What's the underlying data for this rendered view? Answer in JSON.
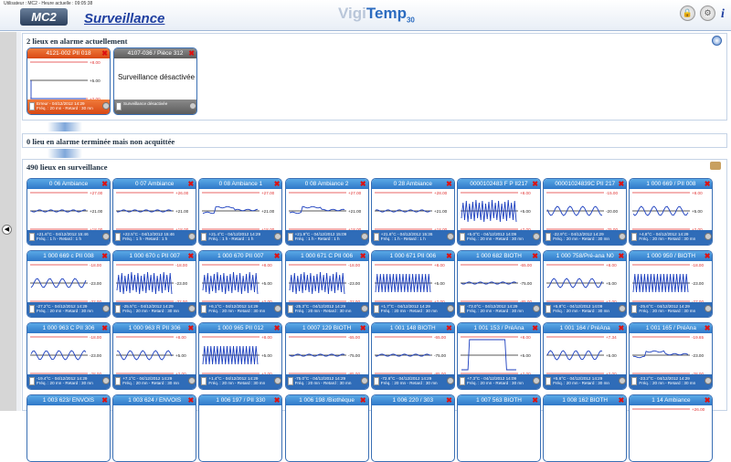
{
  "header": {
    "user_line": "Utilisateur : MC2 - Heure actuelle : 09:05:38",
    "logo": "MC2",
    "title": "Surveillance",
    "brand_a": "Vigi",
    "brand_b": "Temp",
    "brand_sub": "30",
    "info": "i",
    "icons": [
      "lock-icon",
      "settings-icon",
      "info-icon"
    ]
  },
  "sections": {
    "alarm_title": "2 lieux en alarme actuellement",
    "ack_title": "0 lieu en alarme terminée mais non acquittée",
    "watch_title": "490 lieux en surveillance"
  },
  "alarm_cards": [
    {
      "title": "4121-002 PII 018",
      "state": "red",
      "top": "+8.00",
      "mid": "+5.00",
      "bot": "+2.00",
      "f1": "Erreur - 04/12/2012 14:29",
      "f2": "Fréq. : 20 mn - Retard : 30 mn"
    },
    {
      "title": "4107-036 / Pièce 312",
      "state": "grey",
      "message": "Surveillance désactivée",
      "f1": "Surveillance désactivée",
      "f2": ""
    }
  ],
  "cards": [
    {
      "title": "0 06 Ambiance",
      "top": "+27.00",
      "mid": "+21.00",
      "bot": "+18.00",
      "f1": "+21.6°C - 04/12/2012 15:46",
      "f2": "Fréq. : 1 h - Retard : 1 h",
      "wave": "flat"
    },
    {
      "title": "0 07 Ambiance",
      "top": "+26.00",
      "mid": "+21.00",
      "bot": "+18.00",
      "f1": "+22.5°C - 04/12/2012 15:46",
      "f2": "Fréq. : 1 h - Retard : 1 h",
      "wave": "flat"
    },
    {
      "title": "0 08 Ambiance 1",
      "top": "+27.00",
      "mid": "+21.00",
      "bot": "+18.00",
      "f1": "+21.4°C - 04/12/2012 14:29",
      "f2": "Fréq. : 1 h - Retard : 1 h",
      "wave": "step"
    },
    {
      "title": "0 08 Ambiance 2",
      "top": "+27.00",
      "mid": "+21.00",
      "bot": "+18.00",
      "f1": "+21.9°C - 04/12/2012 15:09",
      "f2": "Fréq. : 1 h - Retard : 1 h",
      "wave": "step"
    },
    {
      "title": "0 28 Ambiance",
      "top": "+28.00",
      "mid": "+21.00",
      "bot": "+18.00",
      "f1": "+21.6°C - 04/12/2012 15:36",
      "f2": "Fréq. : 1 h - Retard : 1 h",
      "wave": "flat"
    },
    {
      "title": "0000102483 F P II217",
      "top": "+8.00",
      "mid": "+5.00",
      "bot": "+2.00",
      "f1": "+5.0°C - 04/12/2012 14:09",
      "f2": "Fréq. : 20 mn - Retard : 30 mn",
      "wave": "zig"
    },
    {
      "title": "00001024839C PII 217",
      "top": "-15.00",
      "mid": "-20.00",
      "bot": "-25.00",
      "f1": "-22.9°C - 04/12/2012 14:29",
      "f2": "Fréq. : 20 mn - Retard : 30 mn",
      "wave": "wave"
    },
    {
      "title": "1 000 669 / PII 008",
      "top": "+8.00",
      "mid": "+5.00",
      "bot": "+2.00",
      "f1": "+4.8°C - 04/12/2012 14:29",
      "f2": "Fréq. : 20 mn - Retard : 30 mn",
      "wave": "wave"
    },
    {
      "title": "1 000 669 c PII 008",
      "top": "-18.00",
      "mid": "-23.00",
      "bot": "-32.00",
      "f1": "-27.2°C - 04/12/2012 14:29",
      "f2": "Fréq. : 20 mn - Retard : 30 mn",
      "wave": "wave"
    },
    {
      "title": "1 000 670 c PII 007",
      "top": "-18.00",
      "mid": "-23.00",
      "bot": "-32.00",
      "f1": "-25.5°C - 04/12/2012 14:29",
      "f2": "Fréq. : 20 mn - Retard : 30 mn",
      "wave": "zig"
    },
    {
      "title": "1 000 670 PII 007",
      "top": "+8.00",
      "mid": "+5.00",
      "bot": "+2.00",
      "f1": "+6.1°C - 04/12/2012 14:29",
      "f2": "Fréq. : 20 mn - Retard : 30 mn",
      "wave": "zig"
    },
    {
      "title": "1 000 671 C PII 006",
      "top": "-18.00",
      "mid": "-23.00",
      "bot": "-32.00",
      "f1": "-25.3°C - 04/12/2012 14:29",
      "f2": "Fréq. : 20 mn - Retard : 30 mn",
      "wave": "zig"
    },
    {
      "title": "1 000 671 PII 006",
      "top": "+8.00",
      "mid": "+5.00",
      "bot": "+2.00",
      "f1": "+1.7°C - 04/12/2012 14:29",
      "f2": "Fréq. : 20 mn - Retard : 30 mn",
      "wave": "dense"
    },
    {
      "title": "1 000 682 BIOTH",
      "top": "-65.00",
      "mid": "-75.00",
      "bot": "-85.00",
      "f1": "-73.0°C - 04/12/2012 14:29",
      "f2": "Fréq. : 20 mn - Retard : 30 mn",
      "wave": "flat"
    },
    {
      "title": "1 000 758/Pré-ana N0",
      "top": "+8.00",
      "mid": "+5.00",
      "bot": "+2.00",
      "f1": "+5.8°C - 04/12/2012 14:09",
      "f2": "Fréq. : 20 mn - Retard : 30 mn",
      "wave": "wave"
    },
    {
      "title": "1 000 950 / BIOTH",
      "top": "-18.00",
      "mid": "-23.00",
      "bot": "-27.00",
      "f1": "-25.6°C - 04/12/2012 14:29",
      "f2": "Fréq. : 20 mn - Retard : 30 mn",
      "wave": "dense"
    },
    {
      "title": "1 000 963 C PII 306",
      "top": "-18.00",
      "mid": "-23.00",
      "bot": "-28.00",
      "f1": "-19.4°C - 04/12/2012 14:29",
      "f2": "Fréq. : 20 mn - Retard : 30 mn",
      "wave": "wave"
    },
    {
      "title": "1 000 963 R PII 306",
      "top": "+8.00",
      "mid": "+5.00",
      "bot": "+2.00",
      "f1": "+7.1°C - 04/12/2012 14:29",
      "f2": "Fréq. : 20 mn - Retard : 30 mn",
      "wave": "wave"
    },
    {
      "title": "1 000 965 PII 012",
      "top": "+8.00",
      "mid": "+5.00",
      "bot": "+2.00",
      "f1": "+1.4°C - 04/12/2012 14:29",
      "f2": "Fréq. : 20 mn - Retard : 30 mn",
      "wave": "dense"
    },
    {
      "title": "1 0007 129 BIOTH",
      "top": "-65.00",
      "mid": "-75.00",
      "bot": "-85.00",
      "f1": "-75.0°C - 04/12/2012 14:29",
      "f2": "Fréq. : 20 mn - Retard : 30 mn",
      "wave": "flat"
    },
    {
      "title": "1 001 148 BIOTH",
      "top": "-65.00",
      "mid": "-75.00",
      "bot": "-85.00",
      "f1": "-72.6°C - 04/12/2012 14:29",
      "f2": "Fréq. : 20 mn - Retard : 30 mn",
      "wave": "flat"
    },
    {
      "title": "1 001 153 / PréAna",
      "top": "+8.00",
      "mid": "+5.00",
      "bot": "+2.00",
      "f1": "+7.3°C - 04/12/2012 14:09",
      "f2": "Fréq. : 20 mn - Retard : 30 mn",
      "wave": "spike"
    },
    {
      "title": "1 001 164 / PréAna",
      "top": "+7.34",
      "mid": "+5.00",
      "bot": "+2.00",
      "f1": "+5.6°C - 04/12/2012 14:29",
      "f2": "Fréq. : 20 mn - Retard : 30 mn",
      "wave": "wave"
    },
    {
      "title": "1 001 165 / PréAna",
      "top": "-19.65",
      "mid": "-23.00",
      "bot": "-28.00",
      "f1": "-23.2°C - 04/12/2012 14:29",
      "f2": "Fréq. : 20 mn - Retard : 30 mn",
      "wave": "step"
    },
    {
      "title": "1 003 623/ ENVOIS",
      "top": "",
      "mid": "",
      "bot": "",
      "f1": "",
      "f2": "",
      "wave": "none"
    },
    {
      "title": "1 003 624 / ENVOIS",
      "top": "",
      "mid": "",
      "bot": "",
      "f1": "",
      "f2": "",
      "wave": "none"
    },
    {
      "title": "1 006 197 / PII 330",
      "top": "",
      "mid": "",
      "bot": "",
      "f1": "",
      "f2": "",
      "wave": "none"
    },
    {
      "title": "1 006 198 /Biothèque",
      "top": "",
      "mid": "",
      "bot": "",
      "f1": "",
      "f2": "",
      "wave": "none"
    },
    {
      "title": "1 006 220 / 303",
      "top": "",
      "mid": "",
      "bot": "",
      "f1": "",
      "f2": "",
      "wave": "none"
    },
    {
      "title": "1 007 563 BIOTH",
      "top": "",
      "mid": "",
      "bot": "",
      "f1": "",
      "f2": "",
      "wave": "none"
    },
    {
      "title": "1 008 162 BIOTH",
      "top": "",
      "mid": "",
      "bot": "",
      "f1": "",
      "f2": "",
      "wave": "none"
    },
    {
      "title": "1 14 Ambiance",
      "top": "+26.00",
      "mid": "",
      "bot": "",
      "f1": "",
      "f2": "",
      "wave": "none"
    }
  ]
}
